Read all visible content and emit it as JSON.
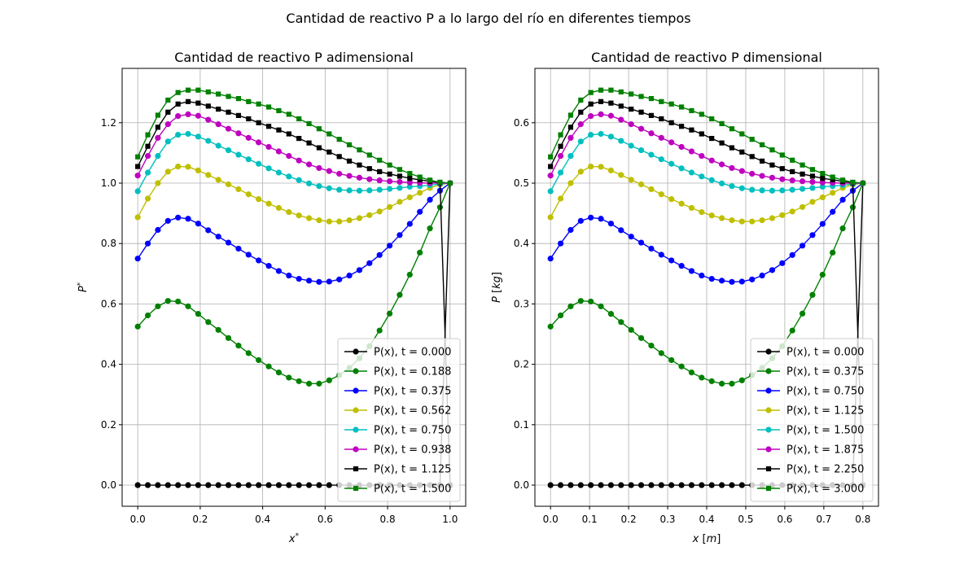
{
  "suptitle": "Cantidad de reactivo P a lo largo del río en diferentes tiempos",
  "chart_data": [
    {
      "type": "line",
      "title": "Cantidad de reactivo P adimensional",
      "xlabel": "x*",
      "ylabel": "P*",
      "xlim": [
        -0.05,
        1.05
      ],
      "ylim": [
        -0.07,
        1.38
      ],
      "xticks": [
        "0.0",
        "0.2",
        "0.4",
        "0.6",
        "0.8",
        "1.0"
      ],
      "yticks": [
        "0.0",
        "0.2",
        "0.4",
        "0.6",
        "0.8",
        "1.0",
        "1.2"
      ],
      "grid": true,
      "legend_position": "lower-right",
      "x": [
        0,
        0.0323,
        0.0645,
        0.0968,
        0.129,
        0.1613,
        0.1935,
        0.2258,
        0.2581,
        0.2903,
        0.3226,
        0.3548,
        0.3871,
        0.4194,
        0.4516,
        0.4839,
        0.5161,
        0.5484,
        0.5806,
        0.6129,
        0.6452,
        0.6774,
        0.7097,
        0.7419,
        0.7742,
        0.8065,
        0.8387,
        0.871,
        0.9032,
        0.9355,
        0.9677,
        1.0
      ],
      "series": [
        {
          "name": "P(x), t = 0.000",
          "color": "#000000",
          "marker": "circle",
          "values": [
            0,
            0,
            0,
            0,
            0,
            0,
            0,
            0,
            0,
            0,
            0,
            0,
            0,
            0,
            0,
            0,
            0,
            0,
            0,
            0,
            0,
            0,
            0,
            0,
            0,
            0,
            0,
            0,
            0,
            0,
            0,
            1.0
          ]
        },
        {
          "name": "P(x), t = 0.188",
          "color": "#008000",
          "marker": "circle",
          "values": [
            0.525,
            0.562,
            0.592,
            0.61,
            0.608,
            0.592,
            0.567,
            0.54,
            0.514,
            0.487,
            0.462,
            0.437,
            0.414,
            0.393,
            0.373,
            0.356,
            0.344,
            0.336,
            0.336,
            0.347,
            0.364,
            0.388,
            0.42,
            0.46,
            0.512,
            0.568,
            0.63,
            0.697,
            0.77,
            0.85,
            0.92,
            1.0
          ]
        },
        {
          "name": "P(x), t = 0.375",
          "color": "#0000ff",
          "marker": "circle",
          "values": [
            0.75,
            0.8,
            0.845,
            0.875,
            0.886,
            0.882,
            0.866,
            0.844,
            0.823,
            0.803,
            0.783,
            0.763,
            0.744,
            0.726,
            0.709,
            0.694,
            0.683,
            0.677,
            0.673,
            0.674,
            0.681,
            0.694,
            0.712,
            0.735,
            0.762,
            0.793,
            0.828,
            0.865,
            0.905,
            0.945,
            0.975,
            1.0
          ]
        },
        {
          "name": "P(x), t = 0.562",
          "color": "#bfbf00",
          "marker": "circle",
          "values": [
            0.887,
            0.949,
            1.0,
            1.038,
            1.055,
            1.054,
            1.042,
            1.027,
            1.011,
            0.996,
            0.98,
            0.963,
            0.947,
            0.932,
            0.918,
            0.904,
            0.893,
            0.884,
            0.877,
            0.873,
            0.873,
            0.877,
            0.884,
            0.894,
            0.906,
            0.921,
            0.938,
            0.953,
            0.968,
            0.984,
            0.995,
            1.0
          ]
        },
        {
          "name": "P(x), t = 0.750",
          "color": "#00bfbf",
          "marker": "circle",
          "values": [
            0.973,
            1.035,
            1.09,
            1.138,
            1.16,
            1.163,
            1.154,
            1.14,
            1.124,
            1.109,
            1.094,
            1.079,
            1.064,
            1.049,
            1.035,
            1.022,
            1.01,
            0.999,
            0.99,
            0.983,
            0.978,
            0.976,
            0.975,
            0.976,
            0.978,
            0.981,
            0.984,
            0.988,
            0.99,
            0.993,
            0.997,
            1.0
          ]
        },
        {
          "name": "P(x), t = 0.938",
          "color": "#bf00bf",
          "marker": "circle",
          "values": [
            1.025,
            1.09,
            1.15,
            1.195,
            1.222,
            1.228,
            1.223,
            1.21,
            1.195,
            1.18,
            1.165,
            1.15,
            1.135,
            1.12,
            1.105,
            1.09,
            1.075,
            1.062,
            1.05,
            1.04,
            1.031,
            1.024,
            1.018,
            1.013,
            1.009,
            1.006,
            1.004,
            1.002,
            1.001,
            1.0,
            1.0,
            1.0
          ]
        },
        {
          "name": "P(x), t = 1.125",
          "color": "#000000",
          "marker": "square",
          "values": [
            1.055,
            1.122,
            1.185,
            1.235,
            1.262,
            1.27,
            1.265,
            1.255,
            1.245,
            1.235,
            1.224,
            1.213,
            1.2,
            1.188,
            1.176,
            1.163,
            1.148,
            1.133,
            1.117,
            1.103,
            1.088,
            1.073,
            1.06,
            1.048,
            1.038,
            1.03,
            1.023,
            1.016,
            1.011,
            1.006,
            1.002,
            0.0
          ]
        },
        {
          "name": "P(x), t = 1.500",
          "color": "#008000",
          "marker": "square",
          "values": [
            1.087,
            1.16,
            1.225,
            1.275,
            1.3,
            1.308,
            1.308,
            1.302,
            1.295,
            1.287,
            1.28,
            1.27,
            1.262,
            1.252,
            1.24,
            1.228,
            1.213,
            1.197,
            1.18,
            1.163,
            1.145,
            1.127,
            1.11,
            1.093,
            1.076,
            1.06,
            1.045,
            1.032,
            1.02,
            1.01,
            1.003,
            1.0
          ]
        }
      ]
    },
    {
      "type": "line",
      "title": "Cantidad de reactivo P dimensional",
      "xlabel": "x [m]",
      "ylabel": "P [kg]",
      "xlim": [
        -0.04,
        0.84
      ],
      "ylim": [
        -0.035,
        0.69
      ],
      "xticks": [
        "0.0",
        "0.1",
        "0.2",
        "0.3",
        "0.4",
        "0.5",
        "0.6",
        "0.7",
        "0.8"
      ],
      "yticks": [
        "0.0",
        "0.1",
        "0.2",
        "0.3",
        "0.4",
        "0.5",
        "0.6"
      ],
      "grid": true,
      "legend_position": "lower-right",
      "x_scale": 0.8,
      "y_scale": 0.5,
      "series_names": [
        "P(x), t = 0.000",
        "P(x), t = 0.375",
        "P(x), t = 0.750",
        "P(x), t = 1.125",
        "P(x), t = 1.500",
        "P(x), t = 1.875",
        "P(x), t = 2.250",
        "P(x), t = 3.000"
      ]
    }
  ]
}
